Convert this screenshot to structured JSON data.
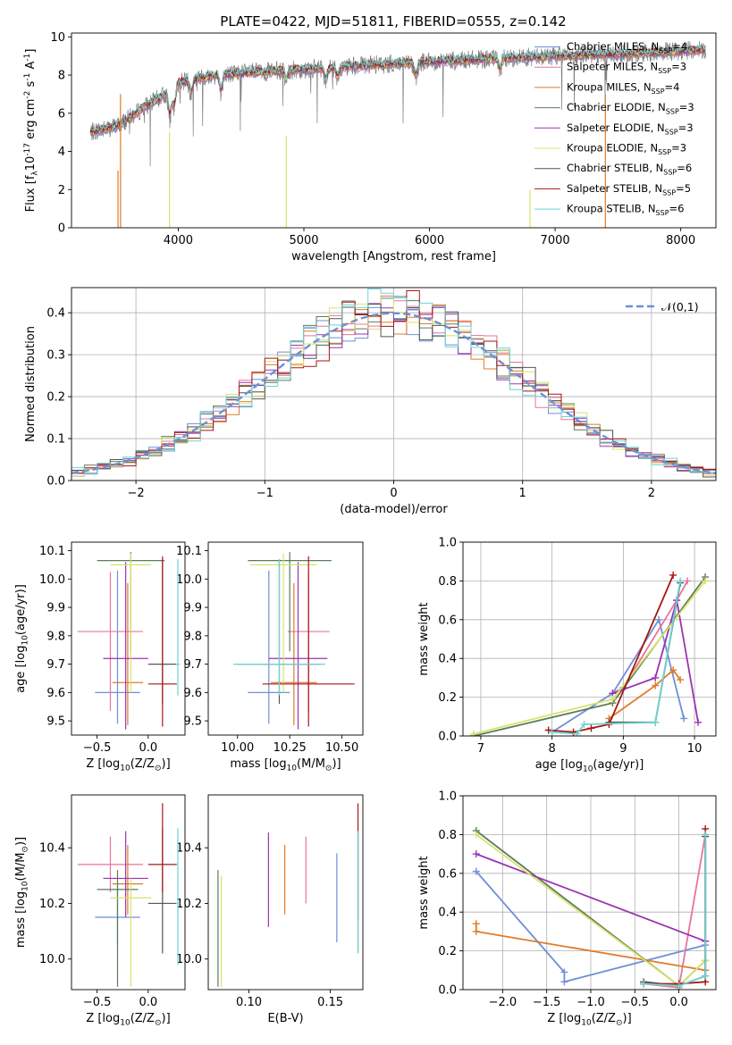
{
  "figure": {
    "title": "PLATE=0422, MJD=51811, FIBERID=0555, z=0.142"
  },
  "series_meta": [
    {
      "name": "Chabrier MILES, N$_{SSP}$=4",
      "color": "#6f8fd6"
    },
    {
      "name": "Salpeter MILES, N$_{SSP}$=3",
      "color": "#e7749c"
    },
    {
      "name": "Kroupa MILES, N$_{SSP}$=4",
      "color": "#e07b28"
    },
    {
      "name": "Chabrier ELODIE, N$_{SSP}$=3",
      "color": "#5a7d5c"
    },
    {
      "name": "Salpeter ELODIE, N$_{SSP}$=3",
      "color": "#9b33b3"
    },
    {
      "name": "Kroupa ELODIE, N$_{SSP}$=3",
      "color": "#d8e36a"
    },
    {
      "name": "Chabrier STELIB, N$_{SSP}$=6",
      "color": "#555555"
    },
    {
      "name": "Salpeter STELIB, N$_{SSP}$=5",
      "color": "#a81616"
    },
    {
      "name": "Kroupa STELIB, N$_{SSP}$=6",
      "color": "#6fd3d3"
    }
  ],
  "chart_data": [
    {
      "type": "line",
      "id": "spectrum",
      "xlabel": "wavelength [Angstrom, rest frame]",
      "ylabel": "Flux [f$_\\lambda$10$^{-17}$ erg cm$^{-2}$ s$^{-1}$ A$^{-1}$]",
      "xlim": [
        3150,
        8280
      ],
      "ylim": [
        0,
        10.2
      ],
      "xticks": [
        4000,
        5000,
        6000,
        7000,
        8000
      ],
      "yticks": [
        0,
        2,
        4,
        6,
        8,
        10
      ],
      "legend": "upper right, inside",
      "data_color": "#808080",
      "continuum": [
        [
          3300,
          5.0
        ],
        [
          3500,
          5.3
        ],
        [
          3600,
          5.7
        ],
        [
          3750,
          6.4
        ],
        [
          3900,
          7.0
        ],
        [
          4000,
          7.6
        ],
        [
          4300,
          8.0
        ],
        [
          4500,
          8.1
        ],
        [
          5000,
          8.3
        ],
        [
          5500,
          8.5
        ],
        [
          6000,
          8.7
        ],
        [
          6500,
          8.85
        ],
        [
          7000,
          9.0
        ],
        [
          7500,
          9.1
        ],
        [
          8000,
          9.25
        ],
        [
          8200,
          9.35
        ]
      ],
      "lines": [
        [
          3934,
          1.5
        ],
        [
          3968,
          1.2
        ],
        [
          4101,
          0.8
        ],
        [
          4340,
          1.0
        ],
        [
          4861,
          0.6
        ],
        [
          5175,
          0.7
        ],
        [
          5270,
          0.6
        ],
        [
          5890,
          0.8
        ],
        [
          6563,
          0.6
        ]
      ],
      "dropouts": [
        [
          3520,
          0,
          3
        ],
        [
          3540,
          0,
          7
        ],
        [
          3930,
          0,
          5
        ],
        [
          4860,
          4.8,
          0
        ],
        [
          6800,
          0,
          2
        ],
        [
          7400,
          0,
          7
        ]
      ]
    },
    {
      "type": "step",
      "id": "residuals",
      "xlabel": "(data-model)/error",
      "ylabel": "Normed distribution",
      "xlim": [
        -2.5,
        2.5
      ],
      "ylim": [
        0,
        0.46
      ],
      "xticks": [
        -2,
        -1,
        0,
        1,
        2
      ],
      "yticks": [
        0.0,
        0.1,
        0.2,
        0.3,
        0.4
      ],
      "grid": true,
      "bin_width": 0.1,
      "bin_start": -2.5,
      "reference": {
        "name": "$\\mathcal{N}(0,1)$",
        "color": "#6f8fd6",
        "style": "dashed"
      }
    },
    {
      "type": "errorbar",
      "id": "age_vs_z",
      "xlabel": "Z [log$_{10}$(Z/Z$_\\odot$)]",
      "ylabel": "age  [log$_{10}$(age/yr)]",
      "xlim": [
        -0.75,
        0.36
      ],
      "ylim": [
        9.45,
        10.13
      ],
      "xticks": [
        -0.5,
        0.0
      ],
      "yticks": [
        9.5,
        9.6,
        9.7,
        9.8,
        9.9,
        10.0,
        10.1
      ],
      "points": [
        {
          "series": 0,
          "x": -0.3,
          "xerr": [
            0.22,
            0.22
          ],
          "y": 9.6,
          "yerr": [
            0.11,
            0.43
          ]
        },
        {
          "series": 1,
          "x": -0.37,
          "xerr": [
            0.32,
            0.32
          ],
          "y": 9.815,
          "yerr": [
            0.28,
            0.21
          ]
        },
        {
          "series": 2,
          "x": -0.2,
          "xerr": [
            0.15,
            0.15
          ],
          "y": 9.635,
          "yerr": [
            0.15,
            0.35
          ]
        },
        {
          "series": 3,
          "x": -0.17,
          "xerr": [
            0.33,
            0.33
          ],
          "y": 10.065,
          "yerr": [
            0.32,
            0.03
          ]
        },
        {
          "series": 4,
          "x": -0.22,
          "xerr": [
            0.22,
            0.22
          ],
          "y": 9.72,
          "yerr": [
            0.25,
            0.34
          ]
        },
        {
          "series": 5,
          "x": -0.17,
          "xerr": [
            0.2,
            0.2
          ],
          "y": 10.05,
          "yerr": [
            0.45,
            0.04
          ]
        },
        {
          "series": 6,
          "x": 0.14,
          "xerr": [
            0.14,
            0.14
          ],
          "y": 9.7,
          "yerr": [
            0.14,
            0.37
          ]
        },
        {
          "series": 7,
          "x": 0.14,
          "xerr": [
            0.14,
            0.14
          ],
          "y": 9.63,
          "yerr": [
            0.15,
            0.45
          ]
        },
        {
          "series": 8,
          "x": 0.29,
          "xerr": [
            0.02,
            0.02
          ],
          "y": 9.7,
          "yerr": [
            0.11,
            0.37
          ]
        }
      ]
    },
    {
      "type": "errorbar",
      "id": "age_vs_mass",
      "xlabel": "mass [log$_{10}$(M/M$_\\odot$)]",
      "ylabel": "",
      "xlim": [
        9.86,
        10.6
      ],
      "ylim": [
        9.45,
        10.13
      ],
      "xticks": [
        10.0,
        10.25,
        10.5
      ],
      "yticks": [
        9.5,
        9.6,
        9.7,
        9.8,
        9.9,
        10.0,
        10.1
      ],
      "points": [
        {
          "series": 0,
          "x": 10.15,
          "xerr": [
            0.1,
            0.1
          ],
          "y": 9.6,
          "yerr": [
            0.11,
            0.43
          ]
        },
        {
          "series": 1,
          "x": 10.34,
          "xerr": [
            0.1,
            0.1
          ],
          "y": 9.815,
          "yerr": [
            0.28,
            0.21
          ]
        },
        {
          "series": 2,
          "x": 10.27,
          "xerr": [
            0.11,
            0.11
          ],
          "y": 9.635,
          "yerr": [
            0.15,
            0.35
          ]
        },
        {
          "series": 3,
          "x": 10.25,
          "xerr": [
            0.2,
            0.2
          ],
          "y": 10.065,
          "yerr": [
            0.32,
            0.03
          ]
        },
        {
          "series": 4,
          "x": 10.29,
          "xerr": [
            0.14,
            0.14
          ],
          "y": 9.72,
          "yerr": [
            0.25,
            0.34
          ]
        },
        {
          "series": 5,
          "x": 10.22,
          "xerr": [
            0.16,
            0.16
          ],
          "y": 10.05,
          "yerr": [
            0.45,
            0.04
          ]
        },
        {
          "series": 6,
          "x": 10.2,
          "xerr": [
            0.2,
            0.2
          ],
          "y": 9.7,
          "yerr": [
            0.14,
            0.37
          ]
        },
        {
          "series": 7,
          "x": 10.34,
          "xerr": [
            0.22,
            0.22
          ],
          "y": 9.63,
          "yerr": [
            0.15,
            0.45
          ]
        },
        {
          "series": 8,
          "x": 10.2,
          "xerr": [
            0.22,
            0.22
          ],
          "y": 9.7,
          "yerr": [
            0.11,
            0.37
          ]
        }
      ]
    },
    {
      "type": "line",
      "id": "weight_vs_age",
      "xlabel": "age  [log$_{10}$(age/yr)]",
      "ylabel": "mass weight",
      "xlim": [
        6.75,
        10.3
      ],
      "ylim": [
        0,
        1.0
      ],
      "xticks": [
        7,
        8,
        9,
        10
      ],
      "yticks": [
        0.0,
        0.2,
        0.4,
        0.6,
        0.8,
        1.0
      ],
      "grid": true,
      "series": [
        {
          "series": 0,
          "x": [
            8.0,
            8.85,
            9.5,
            9.85
          ],
          "y": [
            0.02,
            0.22,
            0.6,
            0.09
          ]
        },
        {
          "series": 1,
          "x": [
            8.85,
            9.0,
            9.75,
            9.9
          ],
          "y": [
            0.22,
            0.25,
            0.7,
            0.8
          ]
        },
        {
          "series": 2,
          "x": [
            8.8,
            9.45,
            9.7,
            9.8
          ],
          "y": [
            0.09,
            0.26,
            0.34,
            0.29
          ]
        },
        {
          "series": 3,
          "x": [
            6.9,
            8.85,
            10.15
          ],
          "y": [
            0.0,
            0.17,
            0.82
          ]
        },
        {
          "series": 4,
          "x": [
            8.85,
            9.45,
            9.75,
            10.05
          ],
          "y": [
            0.22,
            0.3,
            0.7,
            0.07
          ]
        },
        {
          "series": 5,
          "x": [
            6.9,
            8.85,
            10.15
          ],
          "y": [
            0.01,
            0.19,
            0.8
          ]
        },
        {
          "series": 6,
          "x": [
            8.8,
            9.45,
            9.8
          ],
          "y": [
            0.07,
            0.07,
            0.79
          ]
        },
        {
          "series": 7,
          "x": [
            7.95,
            8.3,
            8.55,
            8.8,
            9.7
          ],
          "y": [
            0.03,
            0.02,
            0.04,
            0.06,
            0.83
          ]
        },
        {
          "series": 8,
          "x": [
            8.0,
            8.35,
            8.45,
            9.45,
            9.8
          ],
          "y": [
            0.02,
            0.01,
            0.06,
            0.07,
            0.8
          ]
        }
      ]
    },
    {
      "type": "errorbar",
      "id": "mass_vs_z",
      "xlabel": "Z [log$_{10}$(Z/Z$_\\odot$)]",
      "ylabel": "mass [log$_{10}$(M/M$_\\odot$)]",
      "xlim": [
        -0.75,
        0.36
      ],
      "ylim": [
        9.89,
        10.59
      ],
      "xticks": [
        -0.5,
        0.0
      ],
      "yticks": [
        10.0,
        10.2,
        10.4
      ],
      "points": [
        {
          "series": 0,
          "x": -0.3,
          "xerr": [
            0.22,
            0.22
          ],
          "y": 10.15,
          "yerr": [
            0.1,
            0.11
          ]
        },
        {
          "series": 1,
          "x": -0.37,
          "xerr": [
            0.32,
            0.32
          ],
          "y": 10.34,
          "yerr": [
            0.1,
            0.1
          ]
        },
        {
          "series": 2,
          "x": -0.2,
          "xerr": [
            0.15,
            0.15
          ],
          "y": 10.27,
          "yerr": [
            0.11,
            0.14
          ]
        },
        {
          "series": 3,
          "x": -0.3,
          "xerr": [
            0.2,
            0.2
          ],
          "y": 10.25,
          "yerr": [
            0.35,
            0.07
          ]
        },
        {
          "series": 4,
          "x": -0.22,
          "xerr": [
            0.22,
            0.22
          ],
          "y": 10.29,
          "yerr": [
            0.14,
            0.17
          ]
        },
        {
          "series": 5,
          "x": -0.17,
          "xerr": [
            0.2,
            0.2
          ],
          "y": 10.22,
          "yerr": [
            0.32,
            0.07
          ]
        },
        {
          "series": 6,
          "x": 0.14,
          "xerr": [
            0.14,
            0.14
          ],
          "y": 10.2,
          "yerr": [
            0.18,
            0.27
          ]
        },
        {
          "series": 7,
          "x": 0.14,
          "xerr": [
            0.14,
            0.14
          ],
          "y": 10.34,
          "yerr": [
            0.1,
            0.22
          ]
        },
        {
          "series": 8,
          "x": 0.29,
          "xerr": [
            0.02,
            0.02
          ],
          "y": 10.2,
          "yerr": [
            0.22,
            0.27
          ]
        }
      ]
    },
    {
      "type": "errorbar",
      "id": "mass_vs_ebv",
      "xlabel": "E(B-V)",
      "ylabel": "",
      "xlim": [
        0.075,
        0.17
      ],
      "ylim": [
        9.89,
        10.59
      ],
      "xticks": [
        0.1,
        0.15
      ],
      "yticks": [
        10.0,
        10.2,
        10.4
      ],
      "points": [
        {
          "series": 0,
          "x": 0.154,
          "y": 10.22,
          "yerr": [
            0.16,
            0.16
          ]
        },
        {
          "series": 1,
          "x": 0.135,
          "y": 10.32,
          "yerr": [
            0.12,
            0.12
          ]
        },
        {
          "series": 2,
          "x": 0.122,
          "y": 10.285,
          "yerr": [
            0.125,
            0.125
          ]
        },
        {
          "series": 3,
          "x": 0.081,
          "y": 10.11,
          "yerr": [
            0.21,
            0.21
          ]
        },
        {
          "series": 4,
          "x": 0.112,
          "y": 10.285,
          "yerr": [
            0.17,
            0.17
          ]
        },
        {
          "series": 5,
          "x": 0.083,
          "y": 10.1,
          "yerr": [
            0.2,
            0.2
          ]
        },
        {
          "series": 6,
          "x": 0.167,
          "y": 10.24,
          "yerr": [
            0.22,
            0.22
          ]
        },
        {
          "series": 7,
          "x": 0.167,
          "y": 10.35,
          "yerr": [
            0.21,
            0.21
          ]
        },
        {
          "series": 8,
          "x": 0.167,
          "y": 10.24,
          "yerr": [
            0.22,
            0.22
          ]
        }
      ]
    },
    {
      "type": "line",
      "id": "weight_vs_z",
      "xlabel": "Z [log$_{10}$(Z/Z$_\\odot$)]",
      "ylabel": "mass weight",
      "xlim": [
        -2.45,
        0.42
      ],
      "ylim": [
        0,
        1.0
      ],
      "xticks": [
        -2.0,
        -1.5,
        -1.0,
        -0.5,
        0.0
      ],
      "yticks": [
        0.0,
        0.2,
        0.4,
        0.6,
        0.8,
        1.0
      ],
      "grid": true,
      "series": [
        {
          "series": 0,
          "x": [
            -2.3,
            -1.3,
            -1.3,
            0.3
          ],
          "y": [
            0.61,
            0.09,
            0.04,
            0.23
          ]
        },
        {
          "series": 1,
          "x": [
            -0.4,
            0.0,
            0.3
          ],
          "y": [
            0.03,
            0.01,
            0.8
          ]
        },
        {
          "series": 2,
          "x": [
            -2.3,
            -2.3,
            0.3
          ],
          "y": [
            0.34,
            0.3,
            0.1
          ]
        },
        {
          "series": 3,
          "x": [
            -2.3,
            0.0,
            0.3
          ],
          "y": [
            0.82,
            0.02,
            0.15
          ]
        },
        {
          "series": 4,
          "x": [
            -2.3,
            0.3
          ],
          "y": [
            0.7,
            0.25
          ]
        },
        {
          "series": 5,
          "x": [
            -2.3,
            0.0,
            0.3
          ],
          "y": [
            0.8,
            0.02,
            0.15
          ]
        },
        {
          "series": 6,
          "x": [
            -0.4,
            0.0,
            0.3,
            0.3
          ],
          "y": [
            0.04,
            0.02,
            0.07,
            0.79
          ]
        },
        {
          "series": 7,
          "x": [
            -0.4,
            0.0,
            0.3,
            0.3
          ],
          "y": [
            0.03,
            0.03,
            0.04,
            0.83
          ]
        },
        {
          "series": 8,
          "x": [
            -0.4,
            0.0,
            0.3,
            0.3
          ],
          "y": [
            0.03,
            0.02,
            0.07,
            0.8
          ]
        }
      ]
    }
  ]
}
